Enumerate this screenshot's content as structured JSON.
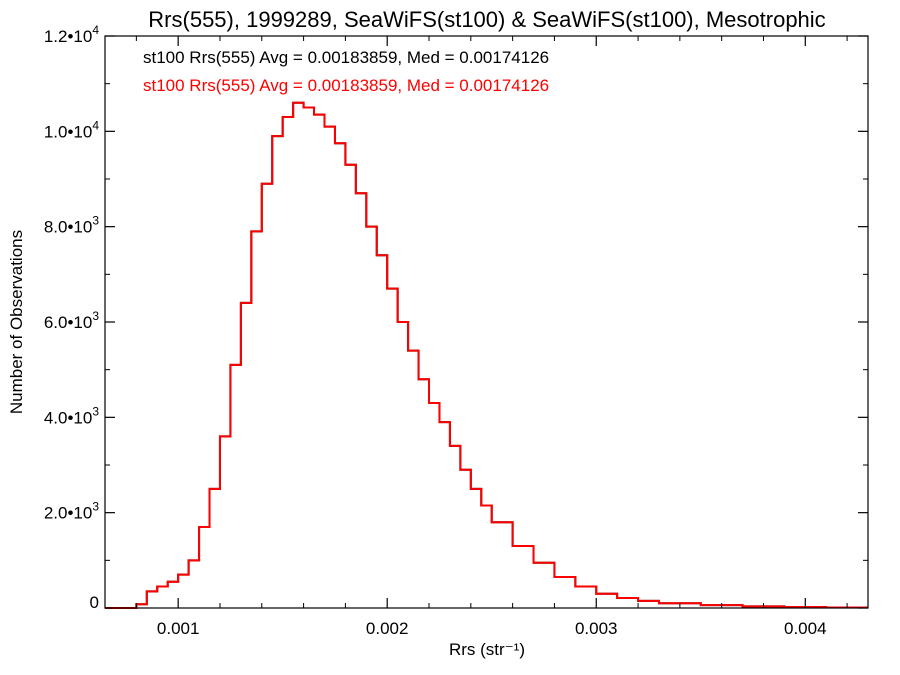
{
  "chart_data": {
    "type": "histogram",
    "title": "Rrs(555), 1999289, SeaWiFS(st100) & SeaWiFS(st100), Mesotrophic",
    "xlabel": "Rrs (str⁻¹)",
    "ylabel": "Number of Observations",
    "xlim": [
      0.00065,
      0.0043
    ],
    "ylim": [
      0,
      12000
    ],
    "x_ticks": [
      0.001,
      0.002,
      0.003,
      0.004
    ],
    "x_tick_labels": [
      "0.001",
      "0.002",
      "0.003",
      "0.004"
    ],
    "y_ticks": [
      0,
      2000,
      4000,
      6000,
      8000,
      10000,
      12000
    ],
    "y_tick_labels": [
      {
        "mant": "0",
        "exp": ""
      },
      {
        "mant": "2.0•10",
        "exp": "3"
      },
      {
        "mant": "4.0•10",
        "exp": "3"
      },
      {
        "mant": "6.0•10",
        "exp": "3"
      },
      {
        "mant": "8.0•10",
        "exp": "3"
      },
      {
        "mant": "1.0•10",
        "exp": "4"
      },
      {
        "mant": "1.2•10",
        "exp": "4"
      }
    ],
    "grid": false,
    "legend_position": "top-left",
    "annotations": [
      {
        "text": "st100 Rrs(555) Avg = 0.00183859, Med = 0.00174126",
        "color": "#000000"
      },
      {
        "text": "st100 Rrs(555) Avg = 0.00183859, Med = 0.00174126",
        "color": "#ff0000"
      }
    ],
    "series": [
      {
        "color": "#000000",
        "overlaid_by_next": true,
        "x": [
          0.00065,
          0.0007,
          0.00075,
          0.0008,
          0.00085,
          0.0009,
          0.00095,
          0.001,
          0.00105,
          0.0011,
          0.00115,
          0.0012,
          0.00125,
          0.0013,
          0.00135,
          0.0014,
          0.00145,
          0.0015,
          0.00155,
          0.0016,
          0.00165,
          0.0017,
          0.00175,
          0.0018,
          0.00185,
          0.0019,
          0.00195,
          0.002,
          0.00205,
          0.0021,
          0.00215,
          0.0022,
          0.00225,
          0.0023,
          0.00235,
          0.0024,
          0.00245,
          0.0025,
          0.0026,
          0.0027,
          0.0028,
          0.0029,
          0.003,
          0.0031,
          0.0032,
          0.0033,
          0.0035,
          0.0037,
          0.0039,
          0.0041,
          0.0043
        ],
        "y": [
          0,
          0,
          0,
          80,
          350,
          450,
          550,
          700,
          1000,
          1700,
          2500,
          3600,
          5100,
          6400,
          7900,
          8900,
          9900,
          10300,
          10600,
          10500,
          10350,
          10100,
          9750,
          9300,
          8700,
          8000,
          7400,
          6700,
          6000,
          5400,
          4800,
          4300,
          3900,
          3400,
          2900,
          2500,
          2150,
          1800,
          1300,
          950,
          650,
          450,
          300,
          210,
          150,
          100,
          60,
          35,
          20,
          10,
          5
        ]
      },
      {
        "color": "#ff0000",
        "x": [
          0.00065,
          0.0007,
          0.00075,
          0.0008,
          0.00085,
          0.0009,
          0.00095,
          0.001,
          0.00105,
          0.0011,
          0.00115,
          0.0012,
          0.00125,
          0.0013,
          0.00135,
          0.0014,
          0.00145,
          0.0015,
          0.00155,
          0.0016,
          0.00165,
          0.0017,
          0.00175,
          0.0018,
          0.00185,
          0.0019,
          0.00195,
          0.002,
          0.00205,
          0.0021,
          0.00215,
          0.0022,
          0.00225,
          0.0023,
          0.00235,
          0.0024,
          0.00245,
          0.0025,
          0.0026,
          0.0027,
          0.0028,
          0.0029,
          0.003,
          0.0031,
          0.0032,
          0.0033,
          0.0035,
          0.0037,
          0.0039,
          0.0041,
          0.0043
        ],
        "y": [
          0,
          0,
          0,
          80,
          350,
          450,
          550,
          700,
          1000,
          1700,
          2500,
          3600,
          5100,
          6400,
          7900,
          8900,
          9900,
          10300,
          10600,
          10500,
          10350,
          10100,
          9750,
          9300,
          8700,
          8000,
          7400,
          6700,
          6000,
          5400,
          4800,
          4300,
          3900,
          3400,
          2900,
          2500,
          2150,
          1800,
          1300,
          950,
          650,
          450,
          300,
          210,
          150,
          100,
          60,
          35,
          20,
          10,
          5
        ]
      }
    ]
  }
}
